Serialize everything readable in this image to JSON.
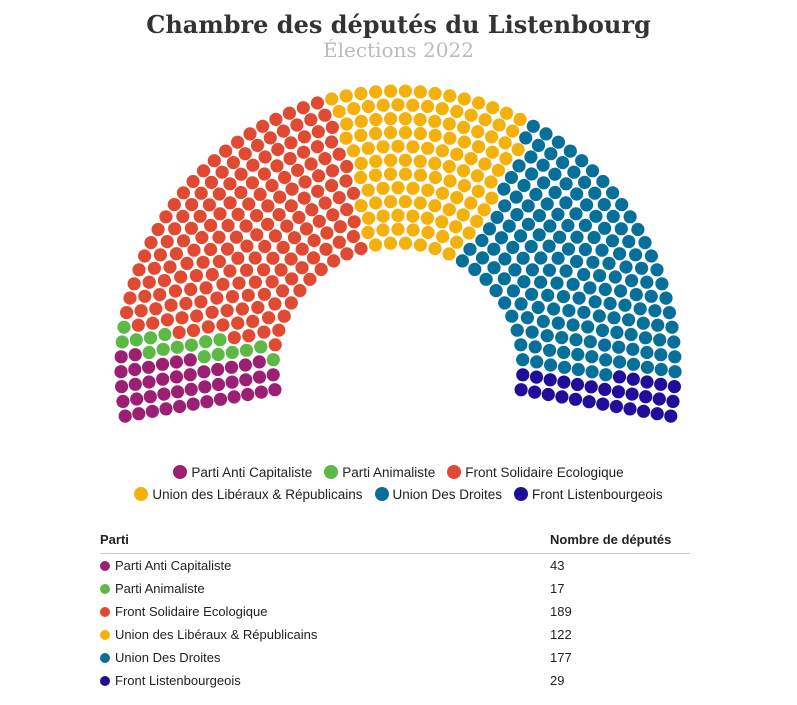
{
  "chart_data": {
    "type": "parliament",
    "title": "Chambre des députés du Listenbourg",
    "subtitle": "Élections 2022",
    "legend_position": "bottom",
    "series": [
      {
        "name": "Parti Anti Capitaliste",
        "value": 43,
        "color": "#9b1f72"
      },
      {
        "name": "Parti Animaliste",
        "value": 17,
        "color": "#5cb946"
      },
      {
        "name": "Front Solidaire Ecologique",
        "value": 189,
        "color": "#e04a33"
      },
      {
        "name": "Union des Libéraux & Républicains",
        "value": 122,
        "color": "#f4b10b"
      },
      {
        "name": "Union Des Droites",
        "value": 177,
        "color": "#07709a"
      },
      {
        "name": "Front Listenbourgeois",
        "value": 29,
        "color": "#1f0e9a"
      }
    ]
  },
  "table": {
    "col_party": "Parti",
    "col_seats": "Nombre de députés"
  }
}
